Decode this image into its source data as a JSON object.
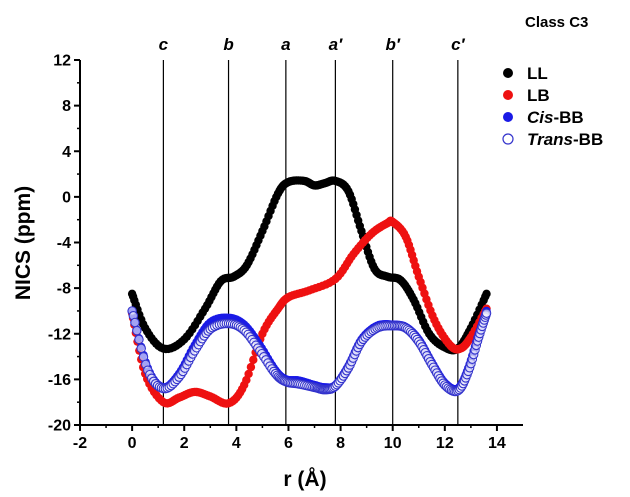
{
  "chart_data": {
    "type": "scatter",
    "title": "Class C3",
    "xlabel": "r (Å)",
    "ylabel": "NICS (ppm)",
    "xlim": [
      -2,
      15
    ],
    "ylim": [
      -20,
      12
    ],
    "x_ticks": [
      -2,
      0,
      2,
      4,
      6,
      8,
      10,
      12,
      14
    ],
    "y_ticks": [
      -20,
      -16,
      -12,
      -8,
      -4,
      0,
      4,
      8,
      12
    ],
    "grid": false,
    "legend_position": "top-right",
    "reference_lines": [
      {
        "label": "c",
        "x": 1.2
      },
      {
        "label": "b",
        "x": 3.7
      },
      {
        "label": "a",
        "x": 5.9
      },
      {
        "label": "a′",
        "x": 7.8
      },
      {
        "label": "b′",
        "x": 10.0
      },
      {
        "label": "c′",
        "x": 12.5
      }
    ],
    "series": [
      {
        "name": "LL",
        "name_parts": {
          "italic": "",
          "normal": "LL"
        },
        "color": "#000000",
        "marker": "filled",
        "x": [
          0,
          0.5,
          1.2,
          2.0,
          2.8,
          3.4,
          3.9,
          4.4,
          5.0,
          5.6,
          6.0,
          6.6,
          7.0,
          7.4,
          7.8,
          8.3,
          8.8,
          9.3,
          9.8,
          10.3,
          10.8,
          11.4,
          12.0,
          12.5,
          13.0,
          13.6
        ],
        "y": [
          -8.5,
          -11.5,
          -13.3,
          -12.5,
          -9.8,
          -7.4,
          -7.0,
          -6.0,
          -3.0,
          0.3,
          1.3,
          1.4,
          1.0,
          1.2,
          1.4,
          0.5,
          -3.0,
          -6.3,
          -7.0,
          -7.3,
          -9.0,
          -12.0,
          -13.2,
          -13.3,
          -11.5,
          -8.5
        ]
      },
      {
        "name": "LB",
        "name_parts": {
          "italic": "",
          "normal": "LB"
        },
        "color": "#ee1111",
        "marker": "filled",
        "x": [
          0,
          0.5,
          1.2,
          1.8,
          2.4,
          3.0,
          3.7,
          4.3,
          5.0,
          5.6,
          6.0,
          6.8,
          7.8,
          8.5,
          9.2,
          9.8,
          10.0,
          10.5,
          11.0,
          11.6,
          12.2,
          12.6,
          13.0,
          13.6
        ],
        "y": [
          -10.2,
          -15.5,
          -18.0,
          -17.6,
          -17.1,
          -17.5,
          -18.1,
          -16.5,
          -12.0,
          -9.8,
          -8.8,
          -8.2,
          -7.2,
          -5.0,
          -3.2,
          -2.3,
          -2.2,
          -3.5,
          -7.0,
          -10.8,
          -13.0,
          -13.3,
          -12.3,
          -9.8
        ]
      },
      {
        "name": "Cis-BB",
        "name_parts": {
          "italic": "Cis",
          "normal": "-BB"
        },
        "color": "#1a1ae6",
        "marker": "filled",
        "x": [
          0,
          0.6,
          1.2,
          1.8,
          2.4,
          3.0,
          3.7,
          4.3,
          4.9,
          5.5,
          5.9,
          6.4,
          7.0,
          7.4,
          7.8,
          8.3,
          8.8,
          9.4,
          10.0,
          10.5,
          11.0,
          11.5,
          12.0,
          12.5,
          12.9,
          13.3,
          13.6
        ],
        "y": [
          -10.0,
          -15.0,
          -16.7,
          -15.5,
          -13.0,
          -11.0,
          -10.6,
          -11.2,
          -13.0,
          -15.2,
          -16.0,
          -16.1,
          -16.5,
          -16.7,
          -16.5,
          -14.8,
          -12.5,
          -11.3,
          -11.2,
          -11.4,
          -12.5,
          -14.5,
          -16.3,
          -16.8,
          -15.0,
          -12.0,
          -10.0
        ]
      },
      {
        "name": "Trans-BB",
        "name_parts": {
          "italic": "Trans",
          "normal": "-BB"
        },
        "color": "#3333cc",
        "marker": "open",
        "x": [
          0,
          0.6,
          1.2,
          1.8,
          2.4,
          3.0,
          3.7,
          4.3,
          4.9,
          5.5,
          5.9,
          6.4,
          7.0,
          7.4,
          7.8,
          8.3,
          8.8,
          9.4,
          10.0,
          10.5,
          11.0,
          11.5,
          12.0,
          12.5,
          12.9,
          13.3,
          13.6
        ],
        "y": [
          -10.0,
          -15.2,
          -16.8,
          -15.8,
          -13.5,
          -11.6,
          -11.1,
          -11.7,
          -13.5,
          -15.5,
          -16.2,
          -16.4,
          -16.7,
          -16.9,
          -16.6,
          -15.0,
          -12.7,
          -11.5,
          -11.3,
          -11.5,
          -12.7,
          -14.7,
          -16.5,
          -17.0,
          -15.3,
          -12.3,
          -10.2
        ]
      }
    ]
  }
}
